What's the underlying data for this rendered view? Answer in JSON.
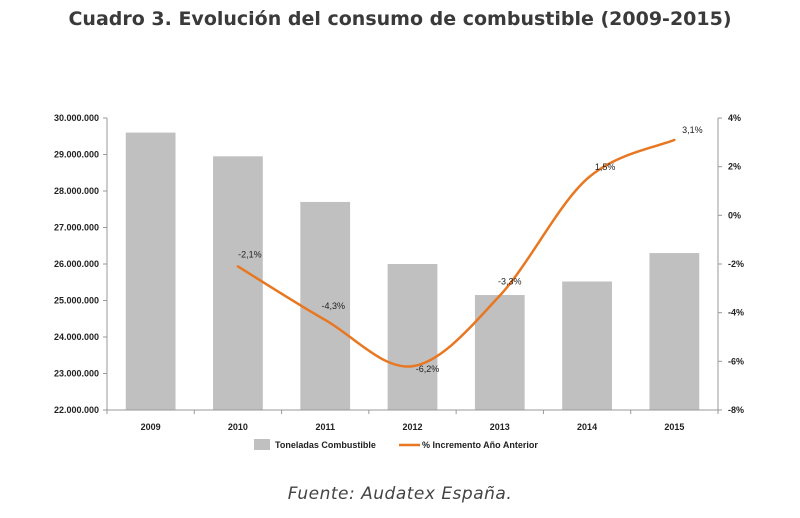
{
  "title": "Cuadro 3. Evolución del consumo de combustible (2009-2015)",
  "source": "Fuente: Audatex España.",
  "colors": {
    "bar": "#c0c0c0",
    "line": "#e87722",
    "axis": "#999999"
  },
  "chart_data": {
    "type": "bar",
    "categories": [
      "2009",
      "2010",
      "2011",
      "2012",
      "2013",
      "2014",
      "2015"
    ],
    "series": [
      {
        "name": "Toneladas Combustible",
        "type": "bar",
        "axis": "left",
        "values": [
          29600000,
          28950000,
          27700000,
          26000000,
          25150000,
          25520000,
          26300000
        ]
      },
      {
        "name": "% Incremento Año Anterior",
        "type": "line",
        "axis": "right",
        "values": [
          null,
          -2.1,
          -4.3,
          -6.2,
          -3.3,
          1.5,
          3.1
        ],
        "labels": [
          null,
          "-2,1%",
          "-4,3%",
          "-6,2%",
          "-3,3%",
          "1,5%",
          "3,1%"
        ]
      }
    ],
    "ylim": [
      22000000,
      30000000
    ],
    "yticks": [
      "22.000.000",
      "23.000.000",
      "24.000.000",
      "25.000.000",
      "26.000.000",
      "27.000.000",
      "28.000.000",
      "29.000.000",
      "30.000.000"
    ],
    "y2lim": [
      -8,
      4
    ],
    "y2ticks": [
      "-8%",
      "-6%",
      "-4%",
      "-2%",
      "0%",
      "2%",
      "4%"
    ],
    "legend": "bottom",
    "grid": false
  }
}
